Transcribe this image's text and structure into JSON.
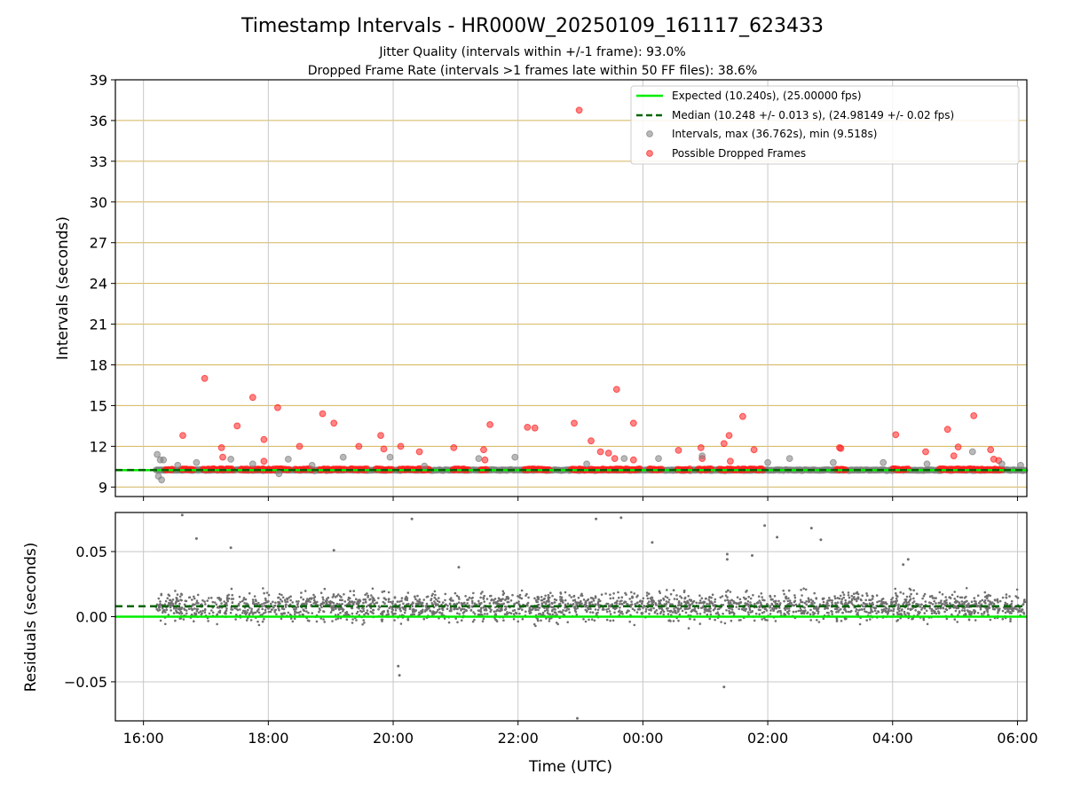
{
  "chart_data": [
    {
      "type": "scatter",
      "title": "Timestamp Intervals - HR000W_20250109_161117_623433",
      "subtitle_lines": [
        "Jitter Quality (intervals within +/-1 frame): 93.0%",
        "Dropped Frame Rate (intervals >1 frames late within 50 FF files): 38.6%"
      ],
      "ylabel": "Intervals (seconds)",
      "ylim": [
        8.3,
        39
      ],
      "yticks": [
        9,
        12,
        15,
        18,
        21,
        24,
        27,
        30,
        33,
        36,
        39
      ],
      "xlim_hours": [
        15.55,
        30.15
      ],
      "grid": true,
      "grid_colors": {
        "horizontal": "#d4b45a",
        "vertical": "#c8c8c8"
      },
      "legend_position": "upper right",
      "legend": [
        {
          "label": "Expected (10.240s), (25.00000 fps)",
          "style": "solid-line",
          "color": "#00ee00"
        },
        {
          "label": "Median (10.248 +/- 0.013 s), (24.98149 +/- 0.02 fps)",
          "style": "dashed-line",
          "color": "#006400"
        },
        {
          "label": "Intervals, max (36.762s), min (9.518s)",
          "style": "marker",
          "color": "#808080"
        },
        {
          "label": "Possible Dropped Frames",
          "style": "marker",
          "color": "#ff2020"
        }
      ],
      "expected_interval": 10.24,
      "median_interval": 10.248,
      "series": [
        {
          "name": "Possible Dropped Frames",
          "color": "#ff2020",
          "points": [
            [
              16.63,
              12.8
            ],
            [
              16.98,
              17.0
            ],
            [
              17.25,
              11.9
            ],
            [
              17.27,
              11.2
            ],
            [
              17.5,
              13.5
            ],
            [
              17.75,
              15.6
            ],
            [
              17.93,
              12.5
            ],
            [
              17.93,
              10.9
            ],
            [
              18.15,
              14.85
            ],
            [
              18.5,
              12.0
            ],
            [
              18.87,
              14.4
            ],
            [
              19.05,
              13.7
            ],
            [
              19.45,
              12.0
            ],
            [
              19.8,
              12.8
            ],
            [
              19.85,
              11.8
            ],
            [
              20.12,
              12.0
            ],
            [
              20.42,
              11.6
            ],
            [
              20.97,
              11.9
            ],
            [
              21.45,
              11.75
            ],
            [
              21.47,
              11.0
            ],
            [
              21.55,
              13.6
            ],
            [
              22.15,
              13.4
            ],
            [
              22.27,
              13.35
            ],
            [
              22.9,
              13.7
            ],
            [
              22.98,
              36.76
            ],
            [
              23.17,
              12.4
            ],
            [
              23.32,
              11.6
            ],
            [
              23.45,
              11.5
            ],
            [
              23.55,
              11.1
            ],
            [
              23.58,
              16.2
            ],
            [
              23.85,
              13.7
            ],
            [
              23.85,
              11.0
            ],
            [
              24.57,
              11.7
            ],
            [
              24.93,
              11.9
            ],
            [
              24.95,
              11.1
            ],
            [
              25.3,
              12.2
            ],
            [
              25.38,
              12.8
            ],
            [
              25.4,
              10.9
            ],
            [
              25.6,
              14.2
            ],
            [
              25.78,
              11.75
            ],
            [
              27.15,
              11.9
            ],
            [
              27.17,
              11.85
            ],
            [
              28.05,
              12.85
            ],
            [
              28.53,
              11.6
            ],
            [
              28.88,
              13.25
            ],
            [
              28.98,
              11.3
            ],
            [
              29.05,
              11.95
            ],
            [
              29.3,
              14.25
            ],
            [
              29.57,
              11.75
            ],
            [
              29.62,
              11.05
            ],
            [
              29.7,
              10.95
            ]
          ]
        },
        {
          "name": "Intervals",
          "color": "#808080",
          "points": [
            [
              16.22,
              11.4
            ],
            [
              16.27,
              11.0
            ],
            [
              16.32,
              11.0
            ],
            [
              16.24,
              9.8
            ],
            [
              16.29,
              9.52
            ],
            [
              16.55,
              10.6
            ],
            [
              16.85,
              10.8
            ],
            [
              17.4,
              11.05
            ],
            [
              17.75,
              10.7
            ],
            [
              18.17,
              9.98
            ],
            [
              18.32,
              11.05
            ],
            [
              18.7,
              10.6
            ],
            [
              19.2,
              11.2
            ],
            [
              19.95,
              11.2
            ],
            [
              20.5,
              10.55
            ],
            [
              21.37,
              11.1
            ],
            [
              21.95,
              11.2
            ],
            [
              23.1,
              10.7
            ],
            [
              23.7,
              11.1
            ],
            [
              24.25,
              11.1
            ],
            [
              24.95,
              11.3
            ],
            [
              26.0,
              10.8
            ],
            [
              26.35,
              11.1
            ],
            [
              27.05,
              10.8
            ],
            [
              27.85,
              10.8
            ],
            [
              28.55,
              10.7
            ],
            [
              29.28,
              11.6
            ],
            [
              29.75,
              10.7
            ],
            [
              30.05,
              10.6
            ]
          ]
        }
      ],
      "dense_band": {
        "description": "many intervals near 10.25 s (grey) and dropped-frame markers near 10.3 s (red)",
        "start_hour": 16.2,
        "end_hour": 30.12,
        "red_segments_hours": [
          [
            16.35,
            16.46
          ],
          [
            16.6,
            16.8
          ],
          [
            16.95,
            17.43
          ],
          [
            17.55,
            17.68
          ],
          [
            17.72,
            18.33
          ],
          [
            18.43,
            18.7
          ],
          [
            18.82,
            19.23
          ],
          [
            19.3,
            19.58
          ],
          [
            19.72,
            19.98
          ],
          [
            20.1,
            20.58
          ],
          [
            20.95,
            21.2
          ],
          [
            21.4,
            21.5
          ],
          [
            22.1,
            22.5
          ],
          [
            22.85,
            23.95
          ],
          [
            24.1,
            24.3
          ],
          [
            24.55,
            24.75
          ],
          [
            24.88,
            25.1
          ],
          [
            25.22,
            25.92
          ],
          [
            27.1,
            27.25
          ],
          [
            28.0,
            28.25
          ],
          [
            28.75,
            29.75
          ]
        ]
      }
    },
    {
      "type": "scatter",
      "ylabel": "Residuals (seconds)",
      "xlabel": "Time (UTC)",
      "ylim": [
        -0.08,
        0.08
      ],
      "yticks": [
        0.05,
        0.0,
        -0.05
      ],
      "ytick_labels": [
        "0.05",
        "0.00",
        "−0.05"
      ],
      "xticks_hours": [
        16,
        18,
        20,
        22,
        24,
        26,
        28,
        30
      ],
      "xtick_labels": [
        "16:00",
        "18:00",
        "20:00",
        "22:00",
        "00:00",
        "02:00",
        "04:00",
        "06:00"
      ],
      "grid": true,
      "expected_residual": 0.0,
      "median_residual": 0.008,
      "series": [
        {
          "name": "Residuals",
          "color": "#707070",
          "points": [
            [
              16.62,
              0.078
            ],
            [
              16.85,
              0.06
            ],
            [
              17.4,
              0.053
            ],
            [
              19.05,
              0.051
            ],
            [
              20.3,
              0.075
            ],
            [
              22.95,
              -0.078
            ],
            [
              23.25,
              0.075
            ],
            [
              23.65,
              0.076
            ],
            [
              24.15,
              0.057
            ],
            [
              25.35,
              0.048
            ],
            [
              25.35,
              0.044
            ],
            [
              25.75,
              0.047
            ],
            [
              25.3,
              -0.054
            ],
            [
              25.95,
              0.07
            ],
            [
              26.15,
              0.061
            ],
            [
              26.7,
              0.068
            ],
            [
              26.85,
              0.059
            ],
            [
              20.1,
              -0.045
            ],
            [
              20.08,
              -0.038
            ],
            [
              21.05,
              0.038
            ],
            [
              28.25,
              0.044
            ],
            [
              28.17,
              0.04
            ]
          ]
        }
      ]
    }
  ]
}
